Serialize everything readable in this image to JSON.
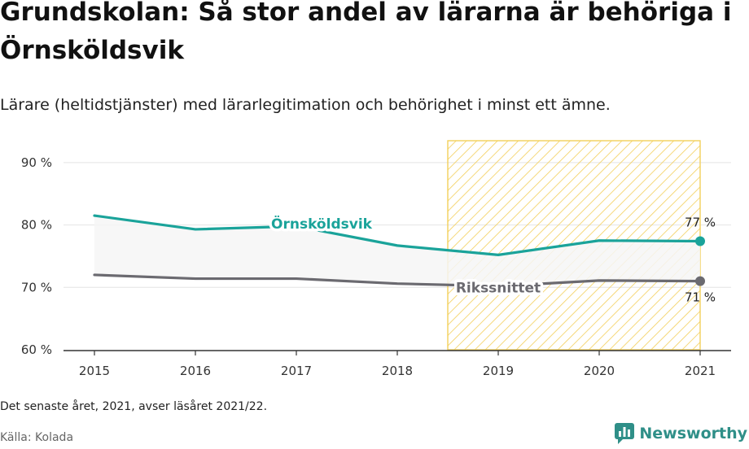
{
  "header": {
    "title": "Grundskolan: Så stor andel av lärarna är behöriga i Örnsköldsvik",
    "subtitle": "Lärare (heltidstjänster) med lärarlegitimation och behörighet i minst ett ämne."
  },
  "footer": {
    "note": "Det senaste året, 2021, avser läsåret 2021/22.",
    "source": "Källa: Kolada",
    "brand": "Newsworthy"
  },
  "colors": {
    "primary": "#1aa39a",
    "secondary": "#6b6a70",
    "highlight": "#f3cf5a",
    "band": "#f6f6f6",
    "brand": "#2f8f88"
  },
  "chart_data": {
    "type": "line",
    "x": [
      2015,
      2016,
      2017,
      2018,
      2019,
      2020,
      2021
    ],
    "series": [
      {
        "name": "Örnsköldsvik",
        "values": [
          81.5,
          79.3,
          79.8,
          76.7,
          75.2,
          77.5,
          77.4
        ],
        "end_label": "77 %",
        "color": "#1aa39a"
      },
      {
        "name": "Rikssnittet",
        "values": [
          72.0,
          71.4,
          71.4,
          70.6,
          70.2,
          71.1,
          71.0
        ],
        "end_label": "71 %",
        "color": "#6b6a70"
      }
    ],
    "yticks": [
      "60 %",
      "70 %",
      "80 %",
      "90 %"
    ],
    "ytick_values": [
      60,
      70,
      80,
      90
    ],
    "xticks": [
      "2015",
      "2016",
      "2017",
      "2018",
      "2019",
      "2020",
      "2021"
    ],
    "ylim": [
      60,
      93.5
    ],
    "xlim": [
      2015,
      2021
    ],
    "highlight_range": [
      2018.5,
      2021
    ],
    "grid": true
  }
}
